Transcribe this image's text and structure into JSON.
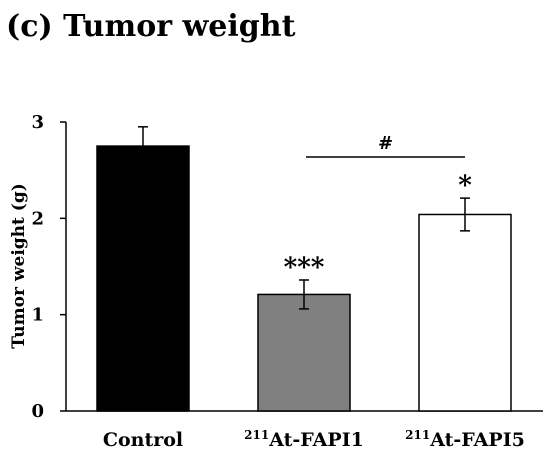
{
  "chart_data": {
    "type": "bar",
    "title": "(c) Tumor weight",
    "xlabel": "",
    "ylabel": "Tumor weight (g)",
    "ylim": [
      0,
      3
    ],
    "yticks": [
      "0",
      "1",
      "2",
      "3"
    ],
    "grid": false,
    "categories": [
      {
        "superscript": "",
        "text": "Control"
      },
      {
        "superscript": "211",
        "text": "At-FAPI1"
      },
      {
        "superscript": "211",
        "text": "At-FAPI5"
      }
    ],
    "values": [
      2.75,
      1.21,
      2.04
    ],
    "errors": [
      0.2,
      0.15,
      0.17
    ],
    "bar_colors": [
      "#000000",
      "#808080",
      "#ffffff"
    ],
    "significance": [
      "",
      "***",
      "*"
    ],
    "bracket": {
      "from": 1,
      "to": 2,
      "label": "#"
    }
  }
}
